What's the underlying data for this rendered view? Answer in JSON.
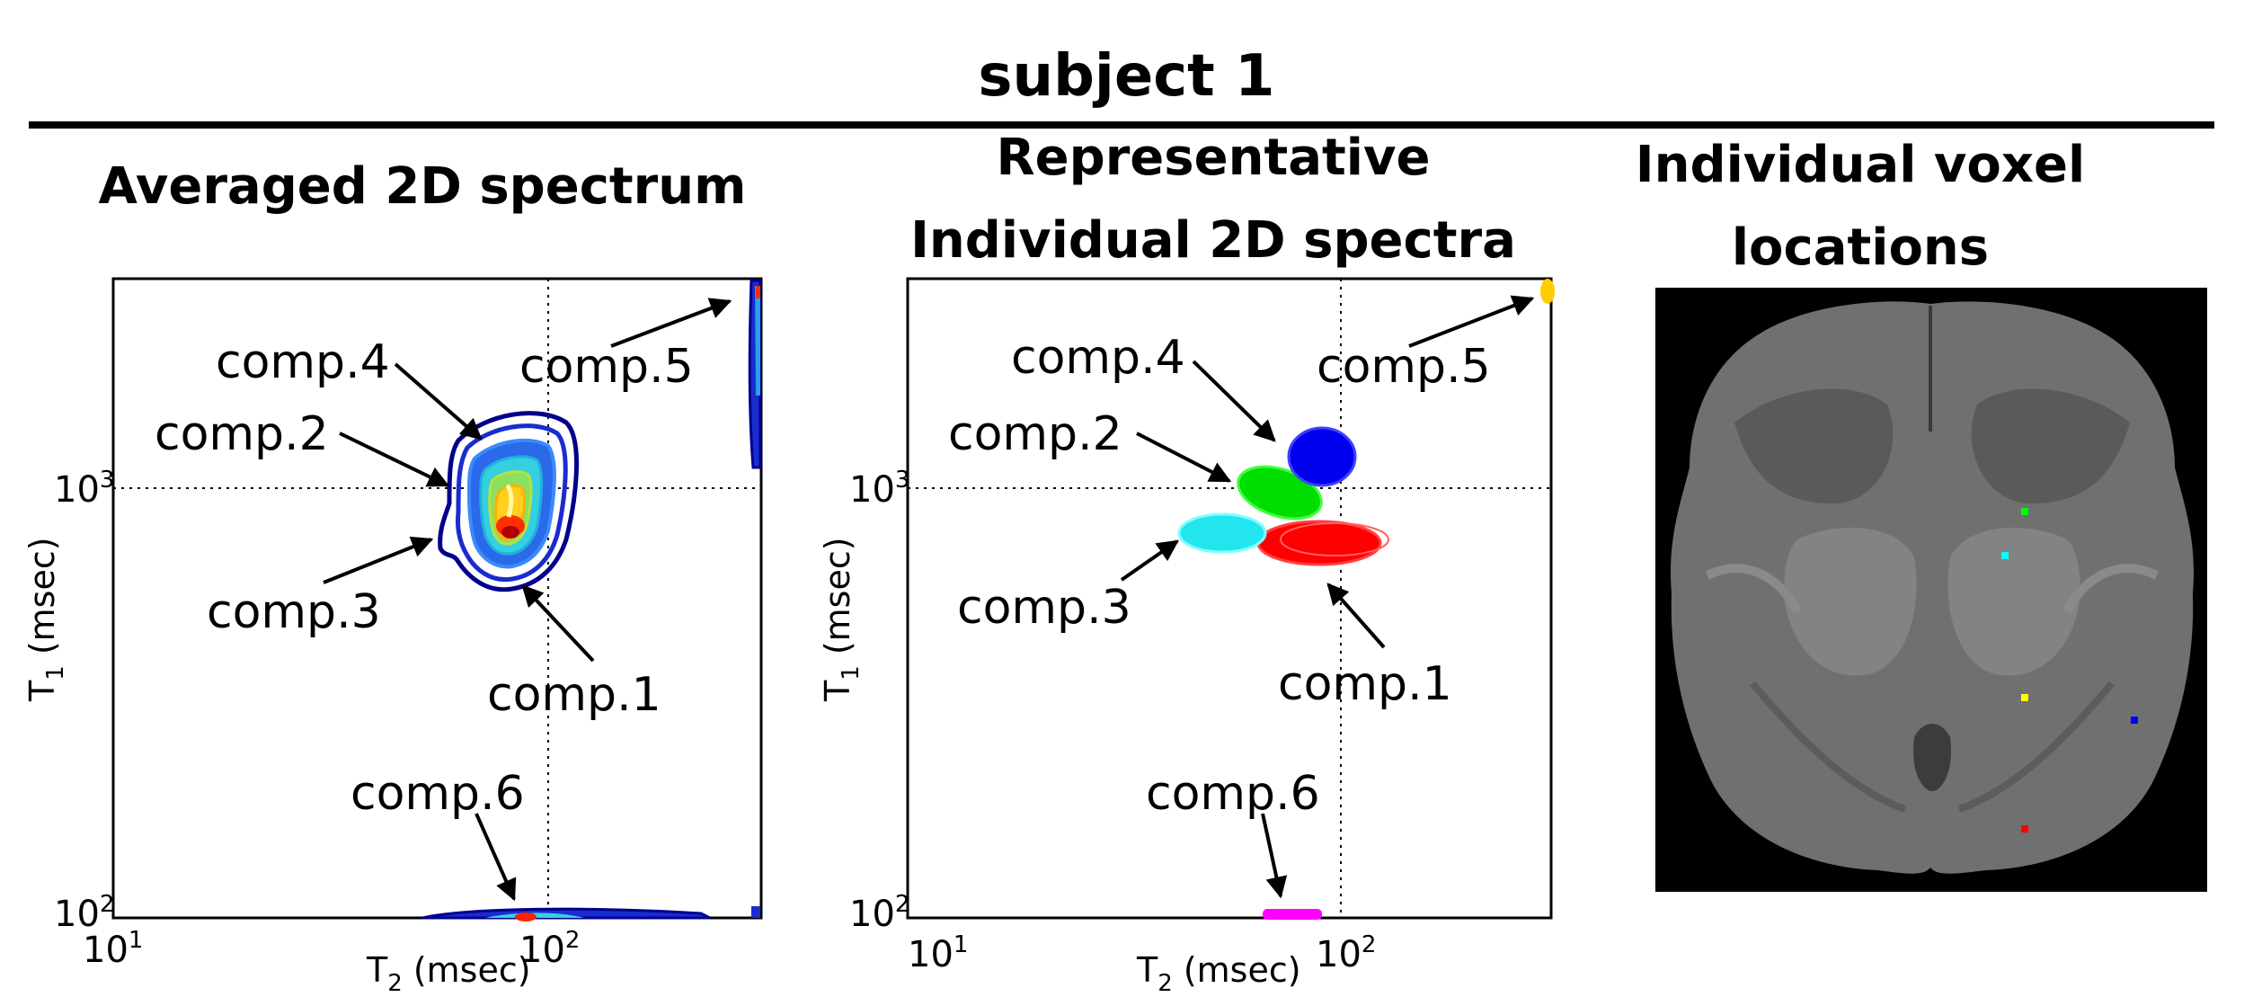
{
  "figure_title": "subject 1",
  "panels": [
    {
      "title": "Averaged 2D spectrum",
      "xlabel_main": "T",
      "xlabel_sub": "2",
      "xlabel_unit": " (msec)",
      "ylabel_main": "T",
      "ylabel_sub": "1",
      "ylabel_unit": " (msec)",
      "xtick_base": "10",
      "xtick_exps": [
        "1",
        "2"
      ],
      "ytick_base": "10",
      "ytick_exps": [
        "2",
        "3"
      ],
      "labels": [
        "comp.1",
        "comp.2",
        "comp.3",
        "comp.4",
        "comp.5",
        "comp.6"
      ]
    },
    {
      "title_line1": "Representative",
      "title_line2": "Individual 2D spectra",
      "xlabel_main": "T",
      "xlabel_sub": "2",
      "xlabel_unit": " (msec)",
      "ylabel_main": "T",
      "ylabel_sub": "1",
      "ylabel_unit": " (msec)",
      "xtick_base": "10",
      "xtick_exps": [
        "1",
        "2"
      ],
      "ytick_base": "10",
      "ytick_exps": [
        "2",
        "3"
      ],
      "labels": [
        "comp.1",
        "comp.2",
        "comp.3",
        "comp.4",
        "comp.5",
        "comp.6"
      ]
    },
    {
      "title_line1": "Individual voxel",
      "title_line2": "locations"
    }
  ],
  "chart_data": [
    {
      "type": "contour",
      "xscale": "log",
      "yscale": "log",
      "xlim": [
        10,
        300
      ],
      "ylim": [
        90,
        3000
      ],
      "xlabel": "T2 (msec)",
      "ylabel": "T1 (msec)",
      "grid": "dotted at 10^2 (x) and 10^3 (y)",
      "components": [
        {
          "name": "comp.1",
          "t2": 85,
          "t1": 720
        },
        {
          "name": "comp.2",
          "t2": 80,
          "t1": 980
        },
        {
          "name": "comp.3",
          "t2": 70,
          "t1": 800
        },
        {
          "name": "comp.4",
          "t2": 85,
          "t1": 1200
        },
        {
          "name": "comp.5",
          "t2": 300,
          "t1": 2000
        },
        {
          "name": "comp.6",
          "t2": 80,
          "t1": 95
        }
      ]
    },
    {
      "type": "contour",
      "xscale": "log",
      "yscale": "log",
      "xlim": [
        10,
        300
      ],
      "ylim": [
        90,
        3000
      ],
      "xlabel": "T2 (msec)",
      "ylabel": "T1 (msec)",
      "grid": "dotted at 10^2 (x) and 10^3 (y)",
      "components": [
        {
          "name": "comp.1",
          "t2": 90,
          "t1": 760,
          "color": "#ff0000"
        },
        {
          "name": "comp.2",
          "t2": 70,
          "t1": 950,
          "color": "#00dd00"
        },
        {
          "name": "comp.3",
          "t2": 50,
          "t1": 800,
          "color": "#22e5ee"
        },
        {
          "name": "comp.4",
          "t2": 85,
          "t1": 1180,
          "color": "#0000ee"
        },
        {
          "name": "comp.5",
          "t2": 290,
          "t1": 2850,
          "color": "#ffcc00"
        },
        {
          "name": "comp.6",
          "t2": 80,
          "t1": 95,
          "color": "#ff00ff"
        }
      ]
    }
  ],
  "voxels": [
    {
      "color": "#00ff00"
    },
    {
      "color": "#00ffff"
    },
    {
      "color": "#ffff00"
    },
    {
      "color": "#0000ff"
    },
    {
      "color": "#ff0000"
    }
  ]
}
